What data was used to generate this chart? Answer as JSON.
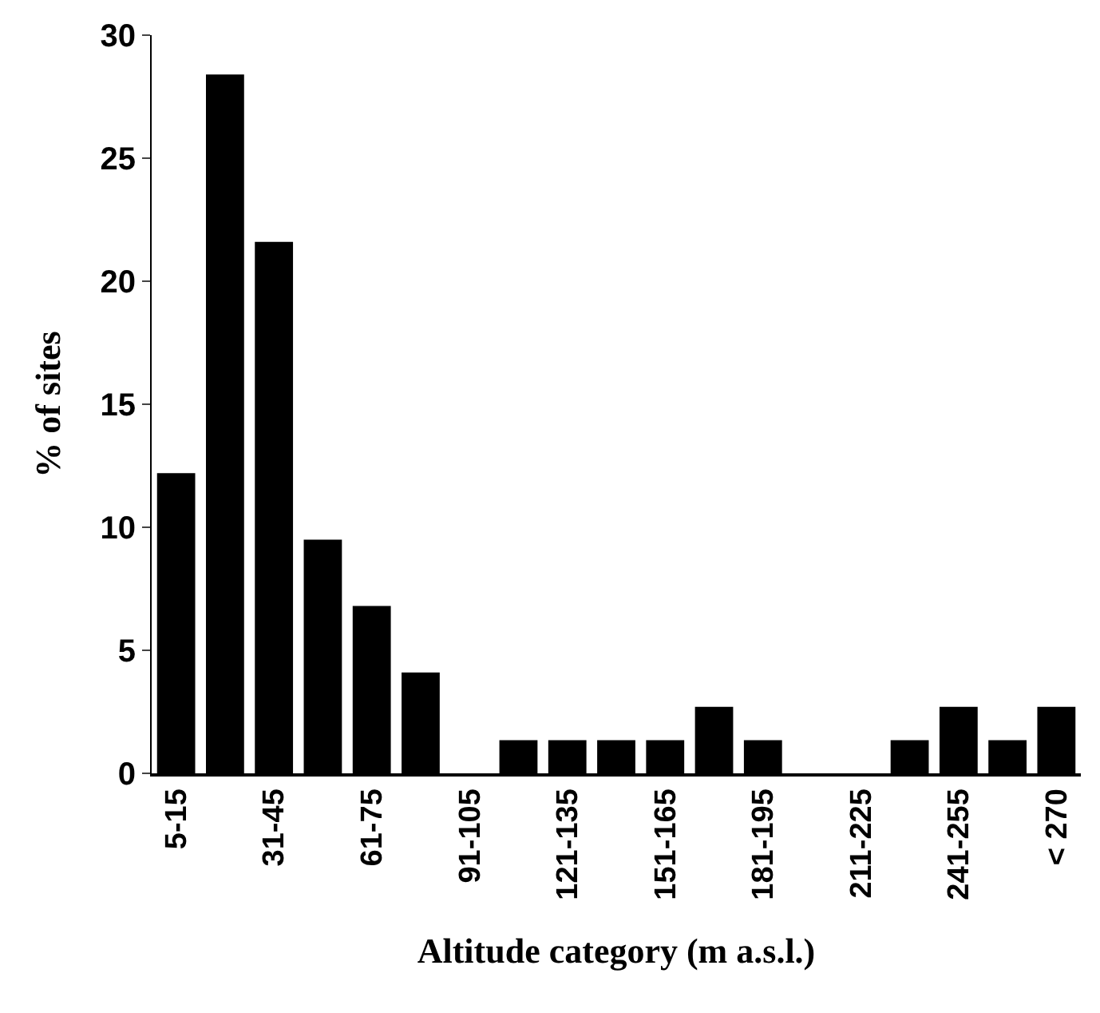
{
  "chart_data": {
    "type": "bar",
    "xlabel": "Altitude category (m a.s.l.)",
    "ylabel": "% of sites",
    "categories": [
      "5-15",
      null,
      "31-45",
      null,
      "61-75",
      null,
      "91-105",
      null,
      "121-135",
      null,
      "151-165",
      null,
      "181-195",
      null,
      "211-225",
      null,
      "241-255",
      null,
      "< 270"
    ],
    "values": [
      12.2,
      28.4,
      21.6,
      9.5,
      6.8,
      4.1,
      0,
      1.35,
      1.35,
      1.35,
      1.35,
      2.7,
      1.35,
      0,
      0,
      1.35,
      2.7,
      1.35,
      2.7
    ],
    "color": "#000000",
    "ylim": [
      0,
      30
    ],
    "yticks": [
      0,
      5,
      10,
      15,
      20,
      25,
      30
    ],
    "grid": false,
    "legend": false
  }
}
